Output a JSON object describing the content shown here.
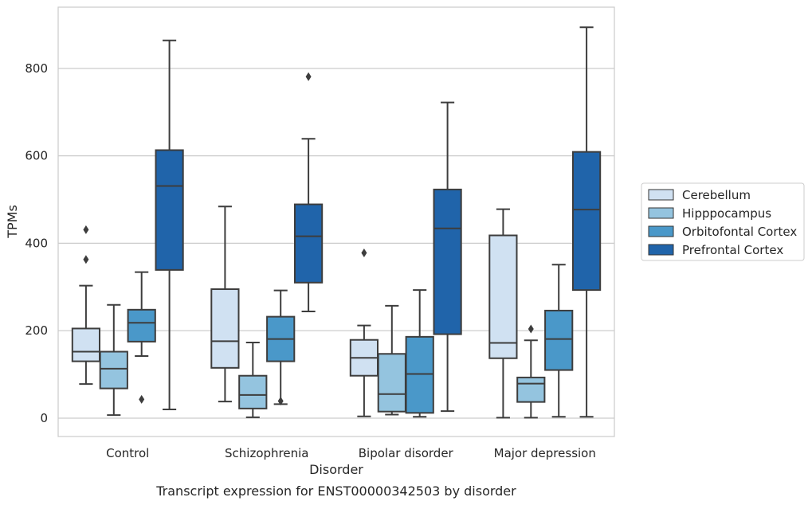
{
  "caption": "Transcript expression for ENST00000342503 by disorder",
  "chart_data": {
    "type": "box",
    "xlabel": "Disorder",
    "ylabel": "TPMs",
    "categories": [
      "Control",
      "Schizophrenia",
      "Bipolar disorder",
      "Major depression"
    ],
    "ylim": [
      -42,
      940
    ],
    "yticks": [
      "0",
      "200",
      "400",
      "600",
      "800"
    ],
    "grid": true,
    "legend_position": "right",
    "series": [
      {
        "name": "Cerebellum",
        "color": "#d0e1f2",
        "boxes": [
          {
            "whislo": 78,
            "q1": 130,
            "med": 152,
            "q3": 205,
            "whishi": 303,
            "fliers": [
              363,
              431
            ]
          },
          {
            "whislo": 38,
            "q1": 115,
            "med": 176,
            "q3": 295,
            "whishi": 484,
            "fliers": []
          },
          {
            "whislo": 4,
            "q1": 97,
            "med": 138,
            "q3": 179,
            "whishi": 212,
            "fliers": [
              378
            ]
          },
          {
            "whislo": 1,
            "q1": 137,
            "med": 172,
            "q3": 418,
            "whishi": 478,
            "fliers": []
          }
        ]
      },
      {
        "name": "Hipppocampus",
        "color": "#94c4df",
        "boxes": [
          {
            "whislo": 7,
            "q1": 68,
            "med": 113,
            "q3": 152,
            "whishi": 259,
            "fliers": []
          },
          {
            "whislo": 2,
            "q1": 22,
            "med": 53,
            "q3": 97,
            "whishi": 173,
            "fliers": []
          },
          {
            "whislo": 8,
            "q1": 15,
            "med": 55,
            "q3": 147,
            "whishi": 257,
            "fliers": []
          },
          {
            "whislo": 1,
            "q1": 37,
            "med": 79,
            "q3": 93,
            "whishi": 178,
            "fliers": [
              204
            ]
          }
        ]
      },
      {
        "name": "Orbitofontal Cortex",
        "color": "#4a98c9",
        "boxes": [
          {
            "whislo": 142,
            "q1": 175,
            "med": 218,
            "q3": 248,
            "whishi": 334,
            "fliers": [
              43
            ]
          },
          {
            "whislo": 32,
            "q1": 130,
            "med": 181,
            "q3": 232,
            "whishi": 292,
            "fliers": [
              39
            ]
          },
          {
            "whislo": 3,
            "q1": 12,
            "med": 101,
            "q3": 186,
            "whishi": 293,
            "fliers": []
          },
          {
            "whislo": 3,
            "q1": 110,
            "med": 181,
            "q3": 246,
            "whishi": 351,
            "fliers": []
          }
        ]
      },
      {
        "name": "Prefrontal Cortex",
        "color": "#2064aa",
        "boxes": [
          {
            "whislo": 20,
            "q1": 339,
            "med": 531,
            "q3": 613,
            "whishi": 864,
            "fliers": []
          },
          {
            "whislo": 244,
            "q1": 310,
            "med": 416,
            "q3": 489,
            "whishi": 639,
            "fliers": [
              781
            ]
          },
          {
            "whislo": 16,
            "q1": 192,
            "med": 434,
            "q3": 523,
            "whishi": 722,
            "fliers": []
          },
          {
            "whislo": 3,
            "q1": 293,
            "med": 477,
            "q3": 609,
            "whishi": 894,
            "fliers": []
          }
        ]
      }
    ]
  }
}
